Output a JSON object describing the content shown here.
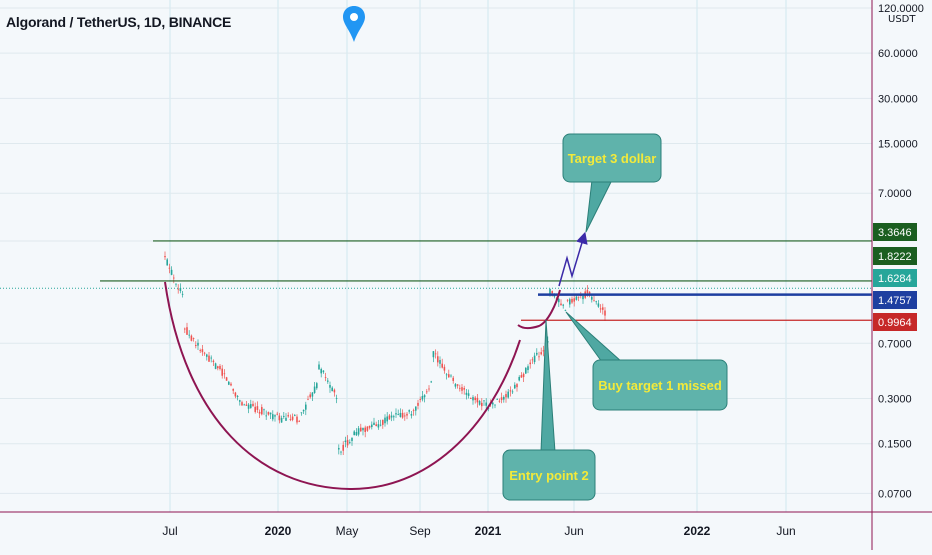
{
  "header": {
    "symbol": "Algorand / TetherUS, 1D, BINANCE",
    "currency": "USDT",
    "marker_icon": "location-pin-icon"
  },
  "chart_data": {
    "type": "candlestick",
    "title": "Algorand / TetherUS, 1D, BINANCE",
    "y_scale": "log",
    "grid": true,
    "x_tick_labels": [
      "Jul",
      "2020",
      "May",
      "Sep",
      "2021",
      "Jun",
      "2022",
      "Jun"
    ],
    "y_tick_labels": [
      "120.0000",
      "60.0000",
      "30.0000",
      "15.0000",
      "7.0000",
      "3.3646",
      "1.8222",
      "1.6284",
      "1.4757",
      "0.9964",
      "0.7000",
      "0.3000",
      "0.1500",
      "0.0700"
    ],
    "price_levels": [
      {
        "value": "3.3646",
        "color": "#1b5e20"
      },
      {
        "value": "1.8222",
        "color": "#1b5e20"
      },
      {
        "value": "1.6284",
        "color": "#26a69a"
      },
      {
        "value": "1.4757",
        "color": "#1e3fa0"
      },
      {
        "value": "0.9964",
        "color": "#c62828"
      }
    ],
    "series": [
      {
        "name": "",
        "path_points": [
          [
            "Jun 2019",
            2.6
          ],
          [
            "Jul 2019",
            1.4
          ],
          [
            "Jul 2019",
            0.9
          ],
          [
            "Aug 2019",
            0.6
          ],
          [
            "Sep 2019",
            0.45
          ],
          [
            "Oct 2019",
            0.28
          ],
          [
            "Nov 2019",
            0.25
          ],
          [
            "Dec 2019",
            0.22
          ],
          [
            "Jan 2020",
            0.22
          ],
          [
            "Feb 2020",
            0.38
          ],
          [
            "Feb 2020",
            0.5
          ],
          [
            "Mar 2020",
            0.3
          ],
          [
            "Mar 2020",
            0.13
          ],
          [
            "Apr 2020",
            0.18
          ],
          [
            "May 2020",
            0.2
          ],
          [
            "Jun 2020",
            0.23
          ],
          [
            "Jul 2020",
            0.24
          ],
          [
            "Aug 2020",
            0.4
          ],
          [
            "Aug 2020",
            0.6
          ],
          [
            "Sep 2020",
            0.4
          ],
          [
            "Oct 2020",
            0.3
          ],
          [
            "Nov 2020",
            0.27
          ],
          [
            "Dec 2020",
            0.32
          ],
          [
            "Jan 2021",
            0.5
          ],
          [
            "Feb 2021",
            0.7
          ],
          [
            "Feb 2021",
            1.6
          ],
          [
            "Mar 2021",
            1.1
          ],
          [
            "Mar 2021",
            1.3
          ],
          [
            "Apr 2021",
            1.5
          ],
          [
            "Apr 2021",
            1.55
          ],
          [
            "May 2021",
            1.1
          ],
          [
            "May 2021",
            1.6
          ]
        ]
      }
    ],
    "annotations": [
      {
        "text": "Target 3 dollar"
      },
      {
        "text": "Buy target 1 missed"
      },
      {
        "text": "Entry point 2"
      }
    ]
  }
}
